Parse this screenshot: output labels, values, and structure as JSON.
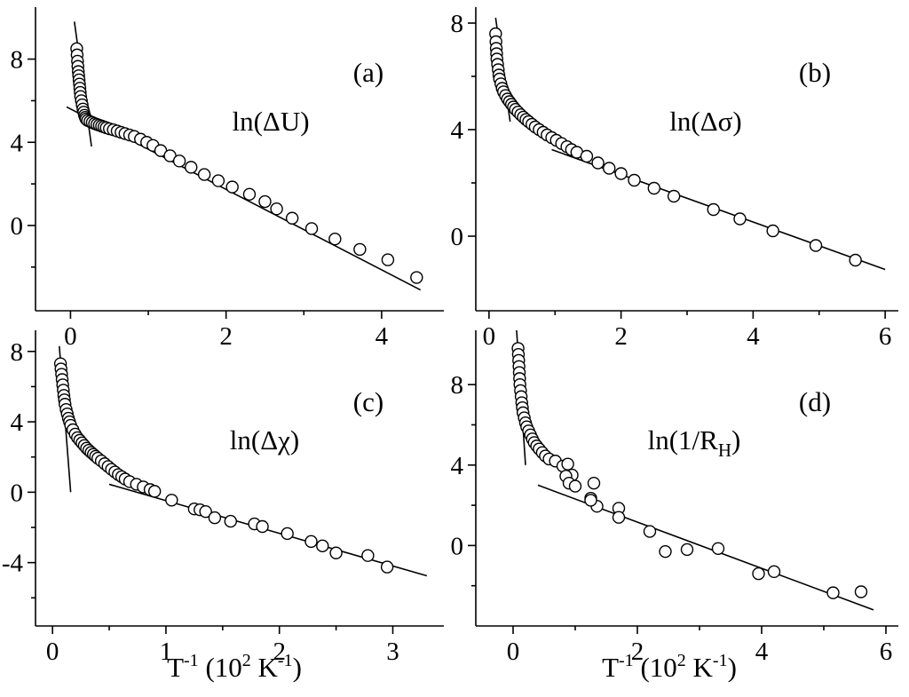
{
  "colors": {
    "background": "#ffffff",
    "ink": "#000000",
    "marker_fill": "#ffffff"
  },
  "chart_data": [
    {
      "type": "scatter",
      "panel": "(a)",
      "quantity": "ln(ΔU)",
      "xlim": [
        -0.45,
        4.8
      ],
      "ylim": [
        -4.1,
        10.5
      ],
      "xticks": [
        0,
        2,
        4
      ],
      "yticks": [
        0,
        4,
        8
      ],
      "minor_x": [
        1,
        3
      ],
      "minor_y": [
        -2,
        2,
        6
      ],
      "grid": false,
      "series": [
        {
          "points": [
            [
              0.08,
              8.5
            ],
            [
              0.085,
              8.2
            ],
            [
              0.09,
              7.9
            ],
            [
              0.095,
              7.65
            ],
            [
              0.1,
              7.4
            ],
            [
              0.105,
              7.2
            ],
            [
              0.11,
              7.0
            ],
            [
              0.115,
              6.8
            ],
            [
              0.12,
              6.6
            ],
            [
              0.125,
              6.4
            ],
            [
              0.13,
              6.2
            ],
            [
              0.14,
              6.0
            ],
            [
              0.15,
              5.8
            ],
            [
              0.16,
              5.6
            ],
            [
              0.17,
              5.45
            ],
            [
              0.18,
              5.3
            ],
            [
              0.19,
              5.2
            ],
            [
              0.2,
              5.12
            ],
            [
              0.22,
              5.05
            ],
            [
              0.25,
              5.0
            ],
            [
              0.28,
              4.95
            ],
            [
              0.31,
              4.9
            ],
            [
              0.34,
              4.86
            ],
            [
              0.37,
              4.82
            ],
            [
              0.4,
              4.78
            ],
            [
              0.43,
              4.74
            ],
            [
              0.46,
              4.7
            ],
            [
              0.5,
              4.65
            ],
            [
              0.55,
              4.6
            ],
            [
              0.6,
              4.54
            ],
            [
              0.65,
              4.48
            ],
            [
              0.7,
              4.42
            ],
            [
              0.76,
              4.35
            ],
            [
              0.82,
              4.28
            ],
            [
              0.9,
              4.15
            ],
            [
              0.98,
              4.0
            ],
            [
              1.06,
              3.85
            ],
            [
              1.16,
              3.6
            ],
            [
              1.28,
              3.35
            ],
            [
              1.4,
              3.1
            ],
            [
              1.55,
              2.8
            ],
            [
              1.72,
              2.45
            ],
            [
              1.9,
              2.15
            ],
            [
              2.08,
              1.85
            ],
            [
              2.3,
              1.5
            ],
            [
              2.5,
              1.15
            ],
            [
              2.65,
              0.8
            ],
            [
              2.85,
              0.35
            ],
            [
              3.1,
              -0.15
            ],
            [
              3.4,
              -0.65
            ],
            [
              3.72,
              -1.15
            ],
            [
              4.08,
              -1.65
            ],
            [
              4.45,
              -2.5
            ]
          ]
        }
      ],
      "lines": [
        {
          "x": [
            0.05,
            0.27
          ],
          "y": [
            9.8,
            3.8
          ]
        },
        {
          "x": [
            -0.05,
            4.5
          ],
          "y": [
            5.7,
            -3.1
          ]
        }
      ]
    },
    {
      "type": "scatter",
      "panel": "(b)",
      "quantity": "ln(Δσ)",
      "xlim": [
        -0.2,
        6.2
      ],
      "ylim": [
        -2.8,
        8.6
      ],
      "xticks": [
        0,
        2,
        4,
        6
      ],
      "yticks": [
        0,
        4,
        8
      ],
      "minor_x": [
        1,
        3,
        5
      ],
      "minor_y": [
        2,
        6
      ],
      "grid": false,
      "series": [
        {
          "points": [
            [
              0.1,
              7.6
            ],
            [
              0.105,
              7.3
            ],
            [
              0.11,
              7.05
            ],
            [
              0.115,
              6.85
            ],
            [
              0.12,
              6.65
            ],
            [
              0.13,
              6.45
            ],
            [
              0.14,
              6.25
            ],
            [
              0.15,
              6.05
            ],
            [
              0.16,
              5.9
            ],
            [
              0.18,
              5.72
            ],
            [
              0.2,
              5.55
            ],
            [
              0.22,
              5.42
            ],
            [
              0.25,
              5.28
            ],
            [
              0.28,
              5.15
            ],
            [
              0.31,
              5.05
            ],
            [
              0.34,
              4.95
            ],
            [
              0.37,
              4.85
            ],
            [
              0.4,
              4.76
            ],
            [
              0.44,
              4.66
            ],
            [
              0.48,
              4.56
            ],
            [
              0.52,
              4.47
            ],
            [
              0.56,
              4.38
            ],
            [
              0.6,
              4.3
            ],
            [
              0.65,
              4.2
            ],
            [
              0.7,
              4.1
            ],
            [
              0.76,
              4.0
            ],
            [
              0.82,
              3.9
            ],
            [
              0.88,
              3.8
            ],
            [
              0.95,
              3.7
            ],
            [
              1.02,
              3.6
            ],
            [
              1.1,
              3.48
            ],
            [
              1.18,
              3.36
            ],
            [
              1.25,
              3.25
            ],
            [
              1.33,
              3.15
            ],
            [
              1.48,
              3.0
            ],
            [
              1.65,
              2.75
            ],
            [
              1.82,
              2.55
            ],
            [
              2.0,
              2.35
            ],
            [
              2.2,
              2.1
            ],
            [
              2.5,
              1.8
            ],
            [
              2.8,
              1.5
            ],
            [
              3.4,
              1.0
            ],
            [
              3.8,
              0.65
            ],
            [
              4.3,
              0.2
            ],
            [
              4.95,
              -0.35
            ],
            [
              5.55,
              -0.9
            ]
          ]
        }
      ],
      "lines": [
        {
          "x": [
            0.1,
            0.32
          ],
          "y": [
            8.2,
            4.3
          ]
        },
        {
          "x": [
            0.95,
            6.0
          ],
          "y": [
            3.25,
            -1.25
          ]
        }
      ]
    },
    {
      "type": "scatter",
      "panel": "(c)",
      "quantity": "ln(Δχ)",
      "xlim": [
        -0.15,
        3.45
      ],
      "ylim": [
        -7.6,
        9.2
      ],
      "xticks": [
        0,
        1,
        2,
        3
      ],
      "yticks": [
        -4,
        0,
        4,
        8
      ],
      "minor_x": [
        0.5,
        1.5,
        2.5
      ],
      "minor_y": [
        -6,
        -2,
        2,
        6
      ],
      "grid": false,
      "series": [
        {
          "points": [
            [
              0.07,
              7.3
            ],
            [
              0.075,
              7.0
            ],
            [
              0.08,
              6.7
            ],
            [
              0.085,
              6.4
            ],
            [
              0.09,
              6.1
            ],
            [
              0.095,
              5.8
            ],
            [
              0.1,
              5.5
            ],
            [
              0.105,
              5.25
            ],
            [
              0.11,
              5.0
            ],
            [
              0.12,
              4.7
            ],
            [
              0.13,
              4.45
            ],
            [
              0.14,
              4.2
            ],
            [
              0.15,
              4.0
            ],
            [
              0.16,
              3.8
            ],
            [
              0.18,
              3.55
            ],
            [
              0.2,
              3.3
            ],
            [
              0.22,
              3.1
            ],
            [
              0.24,
              2.95
            ],
            [
              0.26,
              2.8
            ],
            [
              0.28,
              2.65
            ],
            [
              0.3,
              2.5
            ],
            [
              0.32,
              2.38
            ],
            [
              0.34,
              2.26
            ],
            [
              0.36,
              2.15
            ],
            [
              0.38,
              2.04
            ],
            [
              0.4,
              1.93
            ],
            [
              0.43,
              1.78
            ],
            [
              0.46,
              1.62
            ],
            [
              0.49,
              1.46
            ],
            [
              0.52,
              1.3
            ],
            [
              0.55,
              1.15
            ],
            [
              0.58,
              1.0
            ],
            [
              0.61,
              0.88
            ],
            [
              0.64,
              0.75
            ],
            [
              0.68,
              0.6
            ],
            [
              0.74,
              0.45
            ],
            [
              0.8,
              0.3
            ],
            [
              0.86,
              0.15
            ],
            [
              0.9,
              0.05
            ],
            [
              1.05,
              -0.45
            ],
            [
              1.25,
              -0.95
            ],
            [
              1.3,
              -1.0
            ],
            [
              1.35,
              -1.1
            ],
            [
              1.43,
              -1.45
            ],
            [
              1.57,
              -1.65
            ],
            [
              1.78,
              -1.8
            ],
            [
              1.85,
              -1.95
            ],
            [
              2.07,
              -2.35
            ],
            [
              2.28,
              -2.8
            ],
            [
              2.38,
              -3.05
            ],
            [
              2.5,
              -3.45
            ],
            [
              2.78,
              -3.6
            ],
            [
              2.95,
              -4.25
            ]
          ]
        }
      ],
      "lines": [
        {
          "x": [
            0.06,
            0.16
          ],
          "y": [
            8.3,
            0.0
          ]
        },
        {
          "x": [
            0.5,
            3.3
          ],
          "y": [
            0.45,
            -4.75
          ]
        }
      ]
    },
    {
      "type": "scatter",
      "panel": "(d)",
      "quantity": "ln(1/R_H)",
      "xlim": [
        -0.6,
        6.2
      ],
      "ylim": [
        -4.0,
        10.7
      ],
      "xticks": [
        0,
        2,
        4,
        6
      ],
      "yticks": [
        0,
        4,
        8
      ],
      "minor_x": [
        1,
        3,
        5
      ],
      "minor_y": [
        -2,
        2,
        6
      ],
      "grid": false,
      "series": [
        {
          "points": [
            [
              0.08,
              9.8
            ],
            [
              0.085,
              9.5
            ],
            [
              0.09,
              9.2
            ],
            [
              0.095,
              8.9
            ],
            [
              0.1,
              8.6
            ],
            [
              0.105,
              8.3
            ],
            [
              0.11,
              8.0
            ],
            [
              0.12,
              7.7
            ],
            [
              0.13,
              7.4
            ],
            [
              0.14,
              7.1
            ],
            [
              0.15,
              6.85
            ],
            [
              0.16,
              6.6
            ],
            [
              0.18,
              6.35
            ],
            [
              0.2,
              6.1
            ],
            [
              0.22,
              5.9
            ],
            [
              0.25,
              5.7
            ],
            [
              0.28,
              5.5
            ],
            [
              0.31,
              5.3
            ],
            [
              0.34,
              5.12
            ],
            [
              0.38,
              4.95
            ],
            [
              0.42,
              4.8
            ],
            [
              0.47,
              4.62
            ],
            [
              0.52,
              4.45
            ],
            [
              0.58,
              4.3
            ],
            [
              0.68,
              4.2
            ],
            [
              0.8,
              3.95
            ],
            [
              0.88,
              4.05
            ],
            [
              0.95,
              3.5
            ],
            [
              0.85,
              3.45
            ],
            [
              0.9,
              3.1
            ],
            [
              1.0,
              2.95
            ],
            [
              1.3,
              3.1
            ],
            [
              1.35,
              1.95
            ],
            [
              1.25,
              2.35
            ],
            [
              1.25,
              2.25
            ],
            [
              1.7,
              1.85
            ],
            [
              1.7,
              1.4
            ],
            [
              2.2,
              0.7
            ],
            [
              2.45,
              -0.3
            ],
            [
              2.8,
              -0.2
            ],
            [
              3.3,
              -0.15
            ],
            [
              3.95,
              -1.4
            ],
            [
              4.2,
              -1.3
            ],
            [
              5.15,
              -2.35
            ],
            [
              5.6,
              -2.3
            ]
          ]
        }
      ],
      "lines": [
        {
          "x": [
            0.05,
            0.2
          ],
          "y": [
            11.0,
            4.0
          ]
        },
        {
          "x": [
            0.4,
            5.8
          ],
          "y": [
            3.0,
            -3.2
          ]
        }
      ]
    }
  ],
  "shared": {
    "xlabel": "T-1 (102 K-1)"
  }
}
